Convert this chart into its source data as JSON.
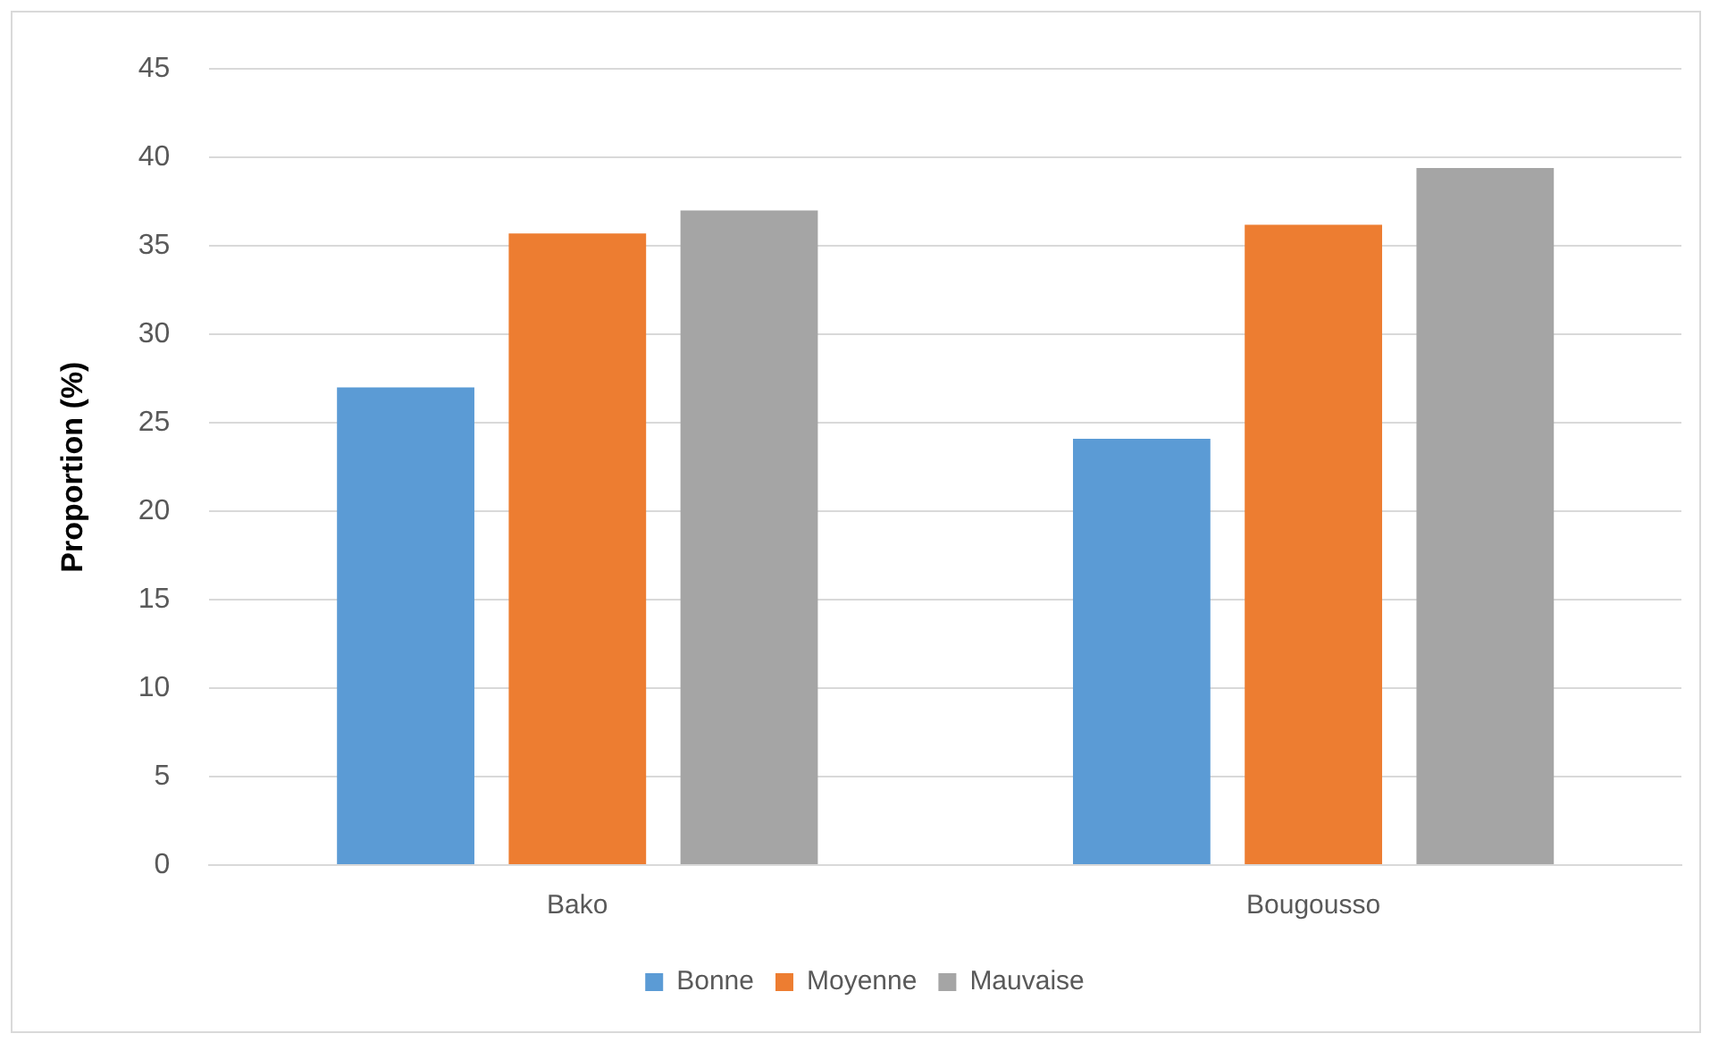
{
  "chart_data": {
    "type": "bar",
    "ylabel": "Proportion (%)",
    "categories": [
      "Bako",
      "Bougousso"
    ],
    "series": [
      {
        "name": "Bonne",
        "color": "#5b9bd5",
        "values": [
          27.0,
          24.1
        ]
      },
      {
        "name": "Moyenne",
        "color": "#ed7d31",
        "values": [
          35.7,
          36.2
        ]
      },
      {
        "name": "Mauvaise",
        "color": "#a5a5a5",
        "values": [
          37.0,
          39.4
        ]
      }
    ],
    "ylim": [
      0,
      45
    ],
    "yticks": [
      0,
      5,
      10,
      15,
      20,
      25,
      30,
      35,
      40,
      45
    ],
    "grid": "y",
    "legend": "bottom"
  }
}
